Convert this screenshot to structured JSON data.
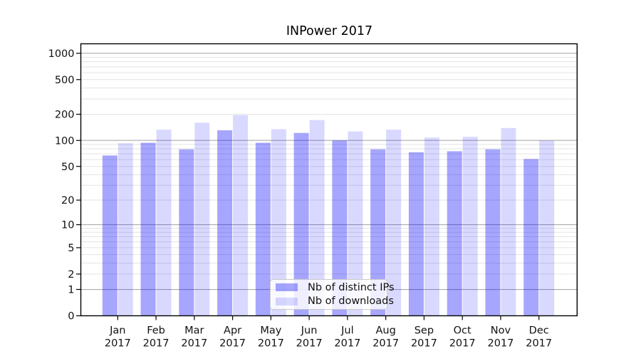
{
  "figure": {
    "title": "INPower 2017"
  },
  "chart_data": {
    "type": "bar",
    "title": "INPower 2017",
    "yscale": "symlog",
    "grid": true,
    "legend_position": "lower center",
    "months": [
      "Jan",
      "Feb",
      "Mar",
      "Apr",
      "May",
      "Jun",
      "Jul",
      "Aug",
      "Sep",
      "Oct",
      "Nov",
      "Dec"
    ],
    "year_label": "2017",
    "categories": [
      "Jan 2017",
      "Feb 2017",
      "Mar 2017",
      "Apr 2017",
      "May 2017",
      "Jun 2017",
      "Jul 2017",
      "Aug 2017",
      "Sep 2017",
      "Oct 2017",
      "Nov 2017",
      "Dec 2017"
    ],
    "series": [
      {
        "name": "Nb of distinct IPs",
        "color": "rgba(0,0,255,0.35)",
        "color_hex_on_white": "#a6a6ff",
        "values": [
          67,
          94,
          79,
          131,
          94,
          122,
          100,
          79,
          73,
          75,
          79,
          61
        ]
      },
      {
        "name": "Nb of downloads",
        "color": "rgba(0,0,255,0.15)",
        "color_hex_on_white": "#d9d9ff",
        "values": [
          93,
          133,
          160,
          196,
          135,
          172,
          127,
          133,
          108,
          110,
          139,
          100
        ]
      }
    ],
    "y_ticks": [
      0,
      1,
      2,
      5,
      10,
      20,
      50,
      100,
      200,
      500,
      1000
    ],
    "y_tick_labels": [
      "0",
      "1",
      "2",
      "5",
      "10",
      "20",
      "50",
      "100",
      "200",
      "500",
      "1000"
    ],
    "ylim": [
      0,
      1280
    ]
  },
  "colors": {
    "grid_major": "#ababab",
    "grid_minor": "#e3e3e3",
    "axis": "#000000",
    "text": "#111111",
    "legend_border": "#c9c9c9"
  }
}
